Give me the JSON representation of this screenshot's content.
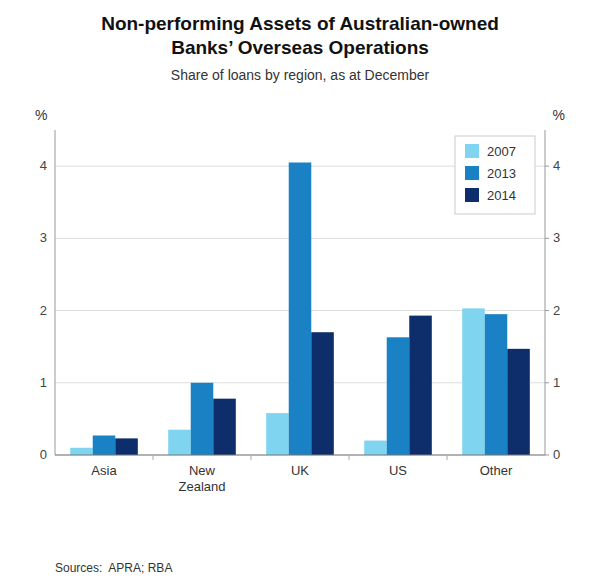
{
  "chart_data": {
    "type": "bar",
    "title": "Non-performing Assets of Australian-owned\nBanks’ Overseas Operations",
    "subtitle": "Share of loans by region, as at December",
    "ylabel": "%",
    "y2label": "%",
    "source": "Sources:  APRA; RBA",
    "categories": [
      "Asia",
      "New\nZealand",
      "UK",
      "US",
      "Other"
    ],
    "series": [
      {
        "name": "2007",
        "color": "#7fd4f0",
        "values": [
          0.1,
          0.35,
          0.58,
          0.2,
          2.03
        ]
      },
      {
        "name": "2013",
        "color": "#1a82c4",
        "values": [
          0.27,
          1.0,
          4.05,
          1.63,
          1.95
        ]
      },
      {
        "name": "2014",
        "color": "#0d2d6b",
        "values": [
          0.23,
          0.78,
          1.7,
          1.93,
          1.47
        ]
      }
    ],
    "ylim": [
      0,
      4.5
    ],
    "yticks": [
      0,
      1,
      2,
      3,
      4
    ],
    "y2lim": [
      0,
      4.5
    ],
    "y2ticks": [
      0,
      1,
      2,
      3,
      4
    ],
    "grid": true,
    "legend": "upper right"
  }
}
